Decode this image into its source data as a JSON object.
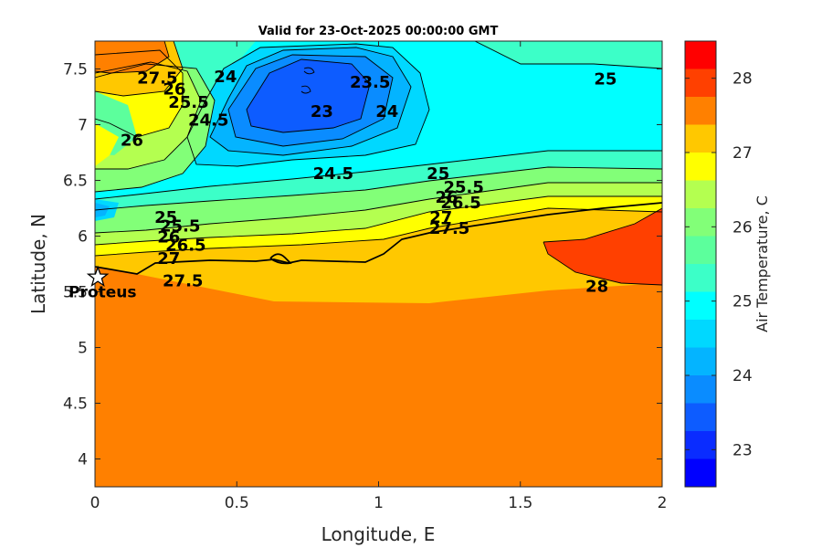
{
  "chart_data": {
    "type": "contour",
    "title": "Valid for 23-Oct-2025 00:00:00 GMT",
    "xlabel": "Longitude, E",
    "ylabel": "Latitude, N",
    "xlim": [
      0,
      2
    ],
    "ylim": [
      3.75,
      7.75
    ],
    "xticks": [
      "0",
      "0.5",
      "1",
      "1.5",
      "2"
    ],
    "yticks": [
      "4",
      "4.5",
      "5",
      "5.5",
      "6",
      "6.5",
      "7",
      "7.5"
    ],
    "colorbar": {
      "label": "Air Temperature, C",
      "range": [
        22.5,
        28.5
      ],
      "ticks": [
        "23",
        "24",
        "25",
        "26",
        "27",
        "28"
      ],
      "levels": [
        22.5,
        22.75,
        23,
        23.25,
        23.5,
        23.75,
        24,
        24.25,
        24.5,
        24.75,
        25,
        25.25,
        25.5,
        25.75,
        26,
        26.25,
        26.5,
        26.75,
        27,
        27.25,
        27.5,
        27.75,
        28,
        28.25,
        28.5
      ],
      "colors": [
        "#0000ff",
        "#0a2cff",
        "#0d5cff",
        "#0a8cff",
        "#04b4ff",
        "#00d8ff",
        "#00ffff",
        "#3cffc8",
        "#5cff9c",
        "#82ff78",
        "#b4ff50",
        "#ffff00",
        "#ffc800",
        "#ff8000",
        "#ff4000",
        "#ff0000"
      ]
    },
    "contour_labels": [
      {
        "text": "27.5",
        "lon": 0.22,
        "lat": 7.42
      },
      {
        "text": "26",
        "lon": 0.28,
        "lat": 7.32
      },
      {
        "text": "25.5",
        "lon": 0.33,
        "lat": 7.2
      },
      {
        "text": "26",
        "lon": 0.13,
        "lat": 6.86
      },
      {
        "text": "24.5",
        "lon": 0.4,
        "lat": 7.04
      },
      {
        "text": "24",
        "lon": 0.46,
        "lat": 7.43
      },
      {
        "text": "23",
        "lon": 0.8,
        "lat": 7.12
      },
      {
        "text": "23.5",
        "lon": 0.97,
        "lat": 7.38
      },
      {
        "text": "24",
        "lon": 1.03,
        "lat": 7.12
      },
      {
        "text": "24.5",
        "lon": 0.84,
        "lat": 6.56
      },
      {
        "text": "25",
        "lon": 1.8,
        "lat": 7.41
      },
      {
        "text": "25",
        "lon": 0.25,
        "lat": 6.17
      },
      {
        "text": "25.5",
        "lon": 0.3,
        "lat": 6.09
      },
      {
        "text": "26",
        "lon": 0.26,
        "lat": 5.99
      },
      {
        "text": "26.5",
        "lon": 0.32,
        "lat": 5.92
      },
      {
        "text": "27",
        "lon": 0.26,
        "lat": 5.8
      },
      {
        "text": "27.5",
        "lon": 0.31,
        "lat": 5.6
      },
      {
        "text": "25",
        "lon": 1.21,
        "lat": 6.56
      },
      {
        "text": "25.5",
        "lon": 1.3,
        "lat": 6.44
      },
      {
        "text": "26",
        "lon": 1.24,
        "lat": 6.35
      },
      {
        "text": "26.5",
        "lon": 1.29,
        "lat": 6.3
      },
      {
        "text": "27",
        "lon": 1.22,
        "lat": 6.17
      },
      {
        "text": "27.5",
        "lon": 1.25,
        "lat": 6.07
      },
      {
        "text": "28",
        "lon": 1.77,
        "lat": 5.55
      }
    ],
    "marker": {
      "label": "Proteus",
      "lon": 0.01,
      "lat": 5.63,
      "symbol": "star"
    }
  }
}
